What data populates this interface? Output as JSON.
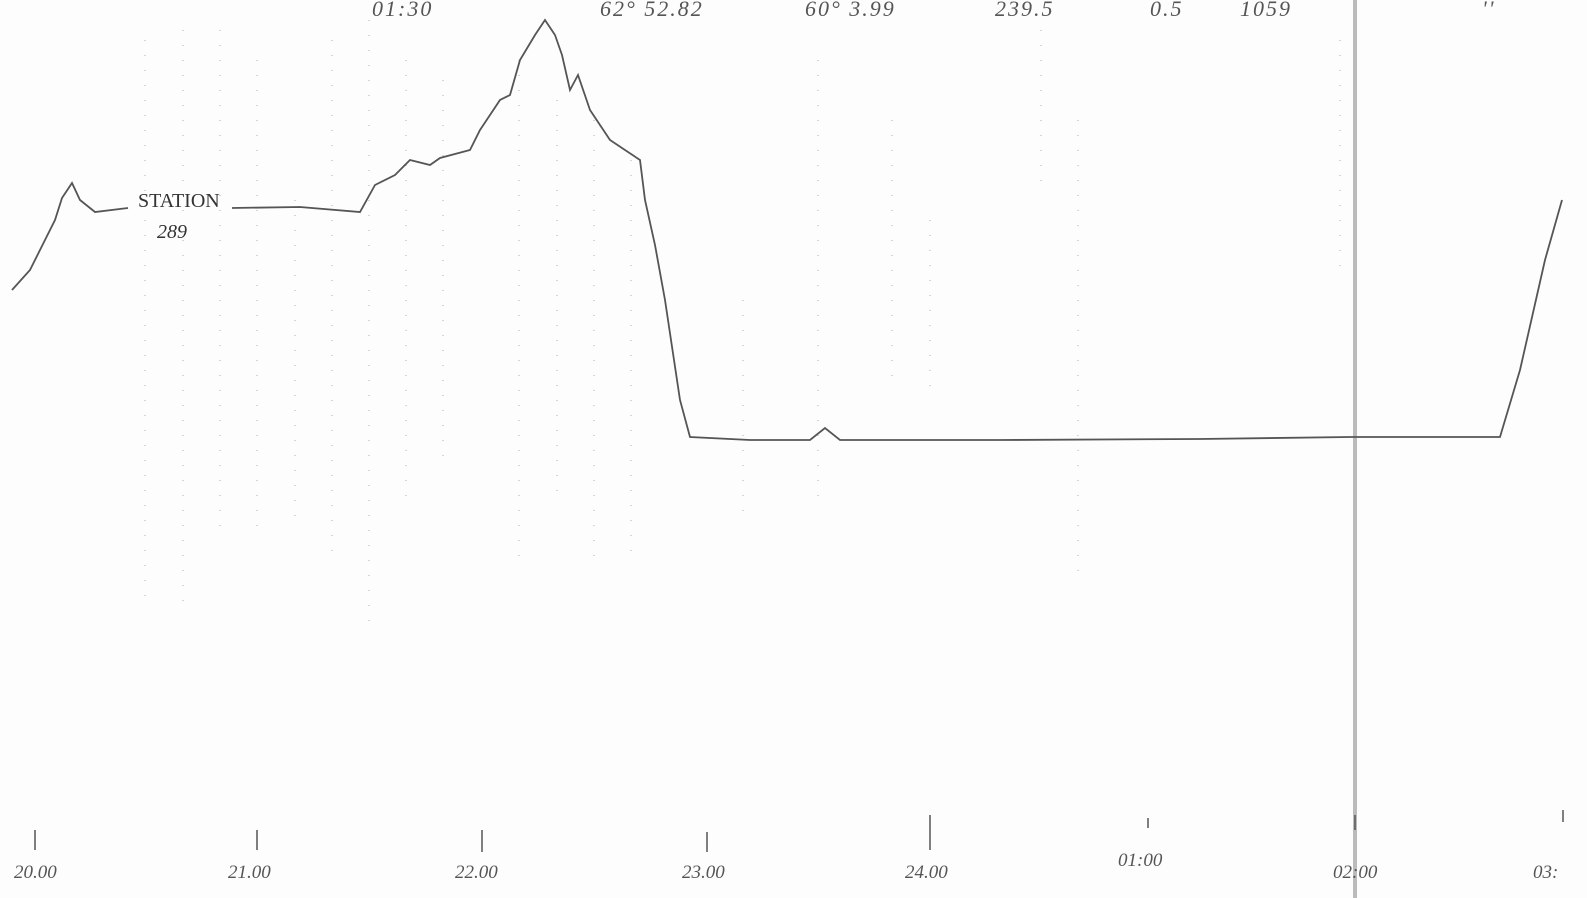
{
  "header": {
    "time": "01:30",
    "latitude": "62° 52.82",
    "longitude": "60° 3.99",
    "depth": "239.5",
    "speed": "0.5",
    "count": "1059",
    "mark": "''"
  },
  "annotation": {
    "label": "STATION",
    "number": "289"
  },
  "time_axis": [
    "20.00",
    "21.00",
    "22.00",
    "23.00",
    "24.00",
    "01:00",
    "02:00",
    "03:"
  ]
}
